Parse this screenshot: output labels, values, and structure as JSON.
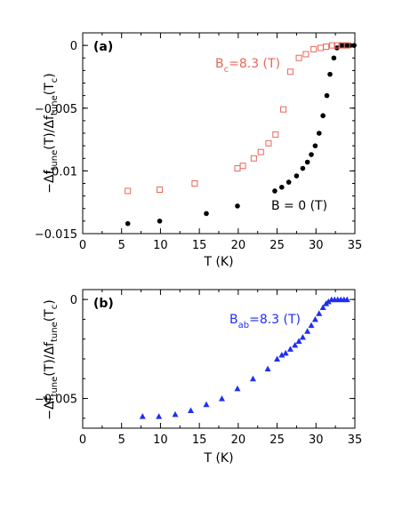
{
  "colors": {
    "black": "#000000",
    "red": "#e8675a",
    "blue": "#1f2ff0"
  },
  "chart_data": [
    {
      "type": "scatter",
      "panel_label": "(a)",
      "xlabel": "T (K)",
      "ylabel": "-Δf_tune(T)/Δf_tune(T_c)",
      "xlim": [
        0,
        35
      ],
      "ylim": [
        -0.015,
        0.001
      ],
      "xticks": [
        "0",
        "5",
        "10",
        "15",
        "20",
        "25",
        "30",
        "35"
      ],
      "yticks": [
        {
          "value": 0,
          "label": "0"
        },
        {
          "value": -0.005,
          "label": "-0.005"
        },
        {
          "value": -0.01,
          "label": "-0.01"
        },
        {
          "value": -0.015,
          "label": "-0.015"
        }
      ],
      "series": [
        {
          "name": "B = 0 (T)",
          "marker": "filled-circle",
          "color": "#000000",
          "x": [
            5.8,
            9.9,
            15.9,
            19.9,
            24.7,
            25.6,
            26.5,
            27.5,
            28.3,
            28.9,
            29.4,
            29.9,
            30.4,
            30.9,
            31.4,
            31.8,
            32.3,
            32.7,
            33.2,
            33.6,
            34.0,
            34.4,
            34.9
          ],
          "y": [
            -0.0142,
            -0.014,
            -0.0134,
            -0.0128,
            -0.0116,
            -0.0113,
            -0.0109,
            -0.0104,
            -0.0098,
            -0.0093,
            -0.0087,
            -0.008,
            -0.007,
            -0.0056,
            -0.004,
            -0.0023,
            -0.001,
            -0.0002,
            0.0,
            0.0,
            0.0,
            0.0,
            0.0
          ]
        },
        {
          "name": "B_c=8.3 (T)",
          "marker": "open-square",
          "color": "#e8675a",
          "x": [
            5.8,
            9.9,
            14.4,
            19.9,
            20.6,
            22.0,
            22.9,
            23.9,
            24.8,
            25.8,
            26.7,
            27.8,
            28.7,
            29.7,
            30.6,
            31.3,
            32.1,
            32.7,
            33.3,
            34.0
          ],
          "y": [
            -0.0116,
            -0.0115,
            -0.011,
            -0.0098,
            -0.0096,
            -0.009,
            -0.0085,
            -0.0078,
            -0.0071,
            -0.0051,
            -0.0021,
            -0.001,
            -0.0007,
            -0.0003,
            -0.0002,
            -0.0001,
            0.0,
            0.0,
            0.0,
            0.0
          ]
        }
      ],
      "annotations": [
        {
          "main": "B",
          "sub": "c",
          "rest": "=8.3 (T)",
          "color": "#e8675a"
        },
        {
          "main": "B = 0 (T)",
          "sub": "",
          "rest": "",
          "color": "#000000"
        }
      ]
    },
    {
      "type": "scatter",
      "panel_label": "(b)",
      "xlabel": "T (K)",
      "ylabel": "-Δf_tune(T)/Δf_tune(T_c)",
      "xlim": [
        0,
        35
      ],
      "ylim": [
        -0.0065,
        0.0005
      ],
      "xticks": [
        "0",
        "5",
        "10",
        "15",
        "20",
        "25",
        "30",
        "35"
      ],
      "yticks": [
        {
          "value": 0,
          "label": "0"
        },
        {
          "value": -0.005,
          "label": "-0.005"
        }
      ],
      "series": [
        {
          "name": "B_ab=8.3 (T)",
          "marker": "filled-triangle",
          "color": "#1f2ff0",
          "x": [
            7.7,
            9.8,
            11.9,
            13.9,
            15.9,
            17.9,
            19.9,
            21.9,
            23.8,
            25.0,
            25.6,
            26.1,
            26.7,
            27.3,
            27.8,
            28.3,
            28.9,
            29.4,
            29.9,
            30.4,
            30.9,
            31.3,
            31.6,
            32.0,
            32.4,
            32.8,
            33.2,
            33.6,
            34.0
          ],
          "y": [
            -0.0059,
            -0.0059,
            -0.0058,
            -0.0056,
            -0.0053,
            -0.005,
            -0.0045,
            -0.004,
            -0.0035,
            -0.003,
            -0.0028,
            -0.0027,
            -0.0025,
            -0.0023,
            -0.0021,
            -0.0019,
            -0.0016,
            -0.0013,
            -0.001,
            -0.0007,
            -0.0004,
            -0.0002,
            -0.0001,
            0.0,
            0.0,
            0.0,
            0.0,
            0.0,
            0.0
          ]
        }
      ],
      "annotations": [
        {
          "main": "B",
          "sub": "ab",
          "rest": "=8.3 (T)",
          "color": "#1f2ff0"
        }
      ]
    }
  ]
}
